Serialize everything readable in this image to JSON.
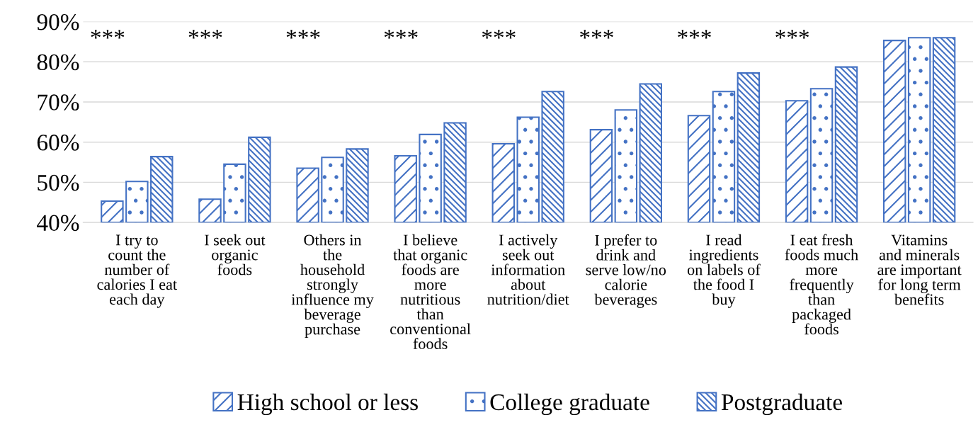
{
  "chart_data": {
    "type": "bar",
    "categories": [
      "I try to\ncount the\nnumber of\ncalories I eat\neach day",
      "I seek out\norganic\nfoods",
      "Others in\nthe\nhousehold\nstrongly\ninfluence my\nbeverage\npurchase",
      "I believe\nthat organic\nfoods are\nmore\nnutritious\nthan\nconventional\nfoods",
      "I actively\nseek out\ninformation\nabout\nnutrition/diet",
      "I prefer to\ndrink and\nserve low/no\ncalorie\nbeverages",
      "I read\ningredients\non labels of\nthe food I\nbuy",
      "I eat fresh\nfoods much\nmore\nfrequently\nthan\npackaged\nfoods",
      "Vitamins\nand minerals\nare important\nfor long term\nbenefits"
    ],
    "series": [
      {
        "name": "High school or less",
        "color": "#4472c4",
        "values": [
          45.3,
          45.8,
          53.5,
          56.6,
          59.6,
          63.1,
          66.6,
          70.3,
          85.3
        ]
      },
      {
        "name": "College graduate",
        "color": "#4472c4",
        "values": [
          50.2,
          54.5,
          56.2,
          61.9,
          66.2,
          68.0,
          72.6,
          73.3,
          86.0
        ]
      },
      {
        "name": "Postgraduate",
        "color": "#4472c4",
        "values": [
          56.4,
          61.2,
          58.3,
          64.8,
          72.6,
          74.5,
          77.2,
          78.7,
          86.0
        ]
      }
    ],
    "ylim": [
      40,
      90
    ],
    "yticks": [
      {
        "value": 40,
        "label": "40%"
      },
      {
        "value": 50,
        "label": "50%"
      },
      {
        "value": 60,
        "label": "60%"
      },
      {
        "value": 70,
        "label": "70%"
      },
      {
        "value": 80,
        "label": "80%"
      },
      {
        "value": 90,
        "label": "90%"
      }
    ],
    "grid": "y",
    "legend": "bottom",
    "annotations": [
      "***",
      "***",
      "***",
      "***",
      "***",
      "***",
      "***",
      "***"
    ]
  }
}
